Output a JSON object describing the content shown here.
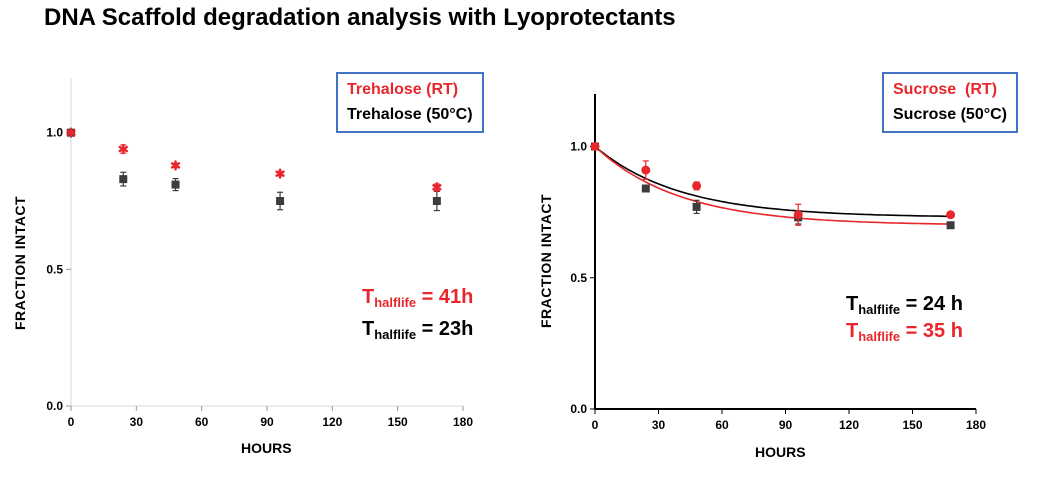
{
  "page_title": "DNA Scaffold degradation analysis with Lyoprotectants",
  "colors": {
    "red": "#E8262B",
    "dark": "#3C3C3C",
    "legend_border": "#4472C4",
    "fit_red": "#E8262B",
    "fit_black": "#000000"
  },
  "chart_data": [
    {
      "type": "scatter",
      "xlabel": "HOURS",
      "ylabel": "FRACTION INTACT",
      "xlim": [
        0,
        180
      ],
      "ylim": [
        0,
        1.2
      ],
      "xticks": [
        "0",
        "30",
        "60",
        "90",
        "120",
        "150",
        "180"
      ],
      "yticks": [
        "0.0",
        "0.5",
        "1.0"
      ],
      "legend": [
        "Trehalose (RT)",
        "Trehalose (50°C)"
      ],
      "series": [
        {
          "name": "Trehalose (RT)",
          "color": "#E8262B",
          "marker": "star",
          "x": [
            0,
            24,
            48,
            96,
            168
          ],
          "y": [
            1.0,
            0.94,
            0.88,
            0.85,
            0.8
          ],
          "err": [
            0.0,
            0.015,
            0.008,
            0.008,
            0.012
          ]
        },
        {
          "name": "Trehalose (50°C)",
          "color": "#3C3C3C",
          "marker": "square",
          "x": [
            0,
            24,
            48,
            96,
            168
          ],
          "y": [
            1.0,
            0.83,
            0.81,
            0.75,
            0.75
          ],
          "err": [
            0.0,
            0.025,
            0.022,
            0.032,
            0.035
          ]
        }
      ],
      "annotations": [
        {
          "label": "T",
          "sub": "halflife",
          "value": " = 41h",
          "color": "#E8262B"
        },
        {
          "label": "T",
          "sub": "halflife",
          "value": " = 23h",
          "color": "#000000"
        }
      ]
    },
    {
      "type": "scatter",
      "xlabel": "HOURS",
      "ylabel": "FRACTION INTACT",
      "xlim": [
        0,
        180
      ],
      "ylim": [
        0,
        1.2
      ],
      "xticks": [
        "0",
        "30",
        "60",
        "90",
        "120",
        "150",
        "180"
      ],
      "yticks": [
        "0.0",
        "0.5",
        "1.0"
      ],
      "legend": [
        "Sucrose  (RT)",
        "Sucrose (50°C)"
      ],
      "series": [
        {
          "name": "Sucrose  (RT)",
          "color": "#E8262B",
          "marker": "circle",
          "x": [
            0,
            24,
            48,
            96,
            168
          ],
          "y": [
            1.0,
            0.91,
            0.85,
            0.74,
            0.74
          ],
          "err": [
            0.0,
            0.035,
            0.015,
            0.04,
            0.01
          ]
        },
        {
          "name": "Sucrose (50°C)",
          "color": "#3C3C3C",
          "marker": "square",
          "x": [
            0,
            24,
            48,
            96,
            168
          ],
          "y": [
            1.0,
            0.84,
            0.77,
            0.73,
            0.7
          ],
          "err": [
            0.0,
            0.012,
            0.025,
            0.025,
            0.01
          ]
        }
      ],
      "fits": [
        {
          "color": "#000000",
          "plateau": 0.73,
          "k": 0.025
        },
        {
          "color": "#E8262B",
          "plateau": 0.7,
          "k": 0.025
        }
      ],
      "annotations": [
        {
          "label": "T",
          "sub": "halflife",
          "value": " = 24 h",
          "color": "#000000"
        },
        {
          "label": "T",
          "sub": "halflife",
          "value": " = 35 h",
          "color": "#E8262B"
        }
      ]
    }
  ]
}
